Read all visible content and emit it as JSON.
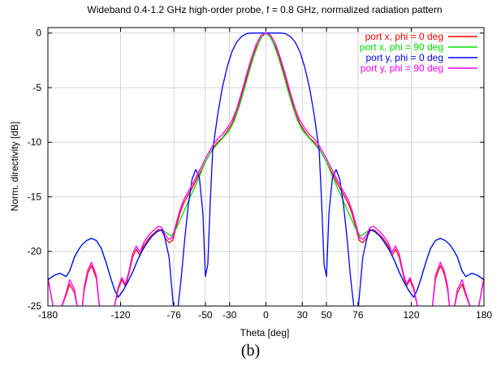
{
  "caption": "(b)",
  "chart_data": {
    "type": "line",
    "title": "Wideband 0.4-1.2 GHz high-order probe, f = 0.8 GHz, normalized radiation pattern",
    "xlabel": "Theta [deg]",
    "ylabel": "Norm. directivity [dB]",
    "xlim": [
      -180,
      180
    ],
    "ylim": [
      -25,
      0.5
    ],
    "xticks": [
      -180,
      -120,
      -76,
      -50,
      -30,
      0,
      30,
      50,
      76,
      120,
      180
    ],
    "yticks": [
      0,
      -5,
      -10,
      -15,
      -20,
      -25
    ],
    "grid": true,
    "legend_position": "top-right",
    "series": [
      {
        "name": "port x, phi =  0 deg",
        "color": "#ff0000",
        "x": [
          -180,
          -175,
          -170,
          -165,
          -162,
          -158,
          -155,
          -152,
          -150,
          -147,
          -144,
          -140,
          -137,
          -134,
          -130,
          -126,
          -122,
          -119,
          -116,
          -113,
          -110,
          -107,
          -104,
          -101,
          -98,
          -95,
          -92,
          -89,
          -86,
          -83,
          -80,
          -77,
          -74,
          -71,
          -68,
          -65,
          -62,
          -59,
          -56,
          -53,
          -50,
          -47,
          -44,
          -40,
          -36,
          -32,
          -28,
          -24,
          -20,
          -16,
          -12,
          -8,
          -4,
          0,
          4,
          8,
          12,
          16,
          20,
          24,
          28,
          32,
          36,
          40,
          44,
          47,
          50,
          53,
          56,
          59,
          62,
          65,
          68,
          71,
          74,
          77,
          80,
          83,
          86,
          89,
          92,
          95,
          98,
          101,
          104,
          107,
          110,
          113,
          116,
          119,
          122,
          126,
          130,
          134,
          137,
          140,
          144,
          147,
          150,
          152,
          155,
          158,
          162,
          165,
          170,
          175,
          180
        ],
        "y": [
          -22.4,
          -25.5,
          -25.5,
          -24.0,
          -23.0,
          -23.8,
          -25.5,
          -25.5,
          -23.5,
          -22.0,
          -21.3,
          -22.5,
          -25.5,
          -25.5,
          -25.5,
          -25.5,
          -23.5,
          -22.6,
          -23.2,
          -22.0,
          -20.5,
          -19.8,
          -20.4,
          -19.5,
          -19.0,
          -18.6,
          -18.3,
          -18.0,
          -18.1,
          -18.8,
          -19.2,
          -19.0,
          -17.7,
          -16.5,
          -15.6,
          -15.0,
          -14.4,
          -13.8,
          -13.1,
          -12.5,
          -11.8,
          -11.2,
          -10.6,
          -10.0,
          -9.6,
          -9.0,
          -8.3,
          -7.2,
          -5.7,
          -4.1,
          -2.6,
          -1.3,
          -0.4,
          0,
          -0.4,
          -1.3,
          -2.6,
          -4.1,
          -5.7,
          -7.2,
          -8.3,
          -9.0,
          -9.6,
          -10.0,
          -10.6,
          -11.2,
          -11.8,
          -12.5,
          -13.1,
          -13.8,
          -14.4,
          -15.0,
          -15.6,
          -16.5,
          -17.7,
          -19.0,
          -19.2,
          -18.8,
          -18.1,
          -18.0,
          -18.3,
          -18.6,
          -19.0,
          -19.5,
          -20.4,
          -19.8,
          -20.5,
          -22.0,
          -23.2,
          -22.6,
          -23.5,
          -25.5,
          -25.5,
          -25.5,
          -25.5,
          -22.5,
          -21.3,
          -22.0,
          -23.5,
          -25.5,
          -25.5,
          -23.8,
          -23.0,
          -24.0,
          -25.5,
          -25.5,
          -22.4
        ]
      },
      {
        "name": "port x, phi = 90 deg",
        "color": "#00e000",
        "x": [
          -180,
          -175,
          -170,
          -165,
          -162,
          -158,
          -155,
          -152,
          -148,
          -144,
          -140,
          -136,
          -132,
          -128,
          -125,
          -122,
          -118,
          -114,
          -110,
          -106,
          -102,
          -98,
          -94,
          -90,
          -86,
          -82,
          -78,
          -74,
          -70,
          -66,
          -62,
          -58,
          -54,
          -50,
          -46,
          -42,
          -38,
          -34,
          -30,
          -26,
          -22,
          -18,
          -14,
          -10,
          -6,
          -3,
          0,
          3,
          6,
          10,
          14,
          18,
          22,
          26,
          30,
          34,
          38,
          42,
          46,
          50,
          54,
          58,
          62,
          66,
          70,
          74,
          78,
          82,
          86,
          90,
          94,
          98,
          102,
          106,
          110,
          114,
          118,
          122,
          125,
          128,
          132,
          136,
          140,
          144,
          148,
          152,
          155,
          158,
          162,
          165,
          170,
          175,
          180
        ],
        "y": [
          -22.6,
          -22.2,
          -22.0,
          -22.3,
          -21.8,
          -20.5,
          -19.9,
          -19.4,
          -19.0,
          -18.8,
          -19.0,
          -19.7,
          -21.0,
          -22.5,
          -23.5,
          -24.2,
          -23.6,
          -22.8,
          -21.9,
          -20.8,
          -19.9,
          -19.2,
          -18.6,
          -18.2,
          -18.0,
          -18.3,
          -18.6,
          -17.9,
          -16.9,
          -15.9,
          -14.9,
          -13.9,
          -12.9,
          -11.8,
          -11.0,
          -10.4,
          -9.9,
          -9.4,
          -8.9,
          -8.0,
          -6.7,
          -5.2,
          -3.6,
          -2.1,
          -0.9,
          -0.25,
          0,
          -0.25,
          -0.9,
          -2.1,
          -3.6,
          -5.2,
          -6.7,
          -8.0,
          -8.9,
          -9.4,
          -9.9,
          -10.4,
          -11.0,
          -11.8,
          -12.9,
          -13.9,
          -14.9,
          -15.9,
          -16.9,
          -17.9,
          -18.6,
          -18.3,
          -18.0,
          -18.2,
          -18.6,
          -19.2,
          -19.9,
          -20.8,
          -21.9,
          -22.8,
          -23.6,
          -24.2,
          -23.5,
          -22.5,
          -21.0,
          -19.7,
          -19.0,
          -18.8,
          -19.0,
          -19.4,
          -19.9,
          -20.5,
          -21.8,
          -22.3,
          -22.0,
          -22.2,
          -22.6
        ]
      },
      {
        "name": "port y, phi =  0 deg",
        "color": "#0000ff",
        "x": [
          -180,
          -175,
          -170,
          -165,
          -162,
          -158,
          -155,
          -152,
          -148,
          -144,
          -140,
          -136,
          -132,
          -128,
          -125,
          -122,
          -118,
          -114,
          -110,
          -106,
          -102,
          -98,
          -94,
          -90,
          -86,
          -84,
          -80,
          -76,
          -73,
          -70,
          -67,
          -64,
          -61,
          -58,
          -55,
          -52,
          -50,
          -48,
          -46,
          -44,
          -40,
          -36,
          -32,
          -28,
          -24,
          -20,
          -16,
          -12,
          -8,
          -4,
          0,
          4,
          8,
          12,
          16,
          20,
          24,
          28,
          32,
          36,
          40,
          44,
          46,
          48,
          50,
          52,
          55,
          58,
          61,
          64,
          67,
          70,
          73,
          76,
          80,
          84,
          86,
          90,
          94,
          98,
          102,
          106,
          110,
          114,
          118,
          122,
          125,
          128,
          132,
          136,
          140,
          144,
          148,
          152,
          155,
          158,
          162,
          165,
          170,
          175,
          180
        ],
        "y": [
          -22.6,
          -22.2,
          -22.0,
          -22.3,
          -21.8,
          -20.5,
          -19.9,
          -19.4,
          -19.0,
          -18.8,
          -19.0,
          -19.7,
          -21.0,
          -22.5,
          -23.5,
          -24.2,
          -23.6,
          -22.8,
          -21.9,
          -20.8,
          -19.9,
          -19.2,
          -18.6,
          -18.2,
          -18.0,
          -18.5,
          -20.5,
          -25.5,
          -25.5,
          -22.5,
          -18.8,
          -15.7,
          -13.4,
          -12.5,
          -13.2,
          -16.5,
          -22.3,
          -21.2,
          -15.5,
          -10.8,
          -7.6,
          -5.0,
          -3.1,
          -1.7,
          -0.8,
          -0.3,
          -0.05,
          0,
          0,
          0,
          0,
          0,
          0,
          0,
          -0.05,
          -0.3,
          -0.8,
          -1.7,
          -3.1,
          -5.0,
          -7.6,
          -10.8,
          -15.5,
          -21.2,
          -22.3,
          -16.5,
          -13.2,
          -12.5,
          -13.4,
          -15.7,
          -18.8,
          -22.5,
          -25.5,
          -25.5,
          -20.5,
          -18.5,
          -18.0,
          -18.2,
          -18.6,
          -19.2,
          -19.9,
          -20.8,
          -21.9,
          -22.8,
          -23.6,
          -24.2,
          -23.5,
          -22.5,
          -21.0,
          -19.7,
          -19.0,
          -18.8,
          -19.0,
          -19.4,
          -19.9,
          -20.5,
          -21.8,
          -22.3,
          -22.0,
          -22.2,
          -22.6
        ]
      },
      {
        "name": "port y, phi = 90 deg",
        "color": "#ff00ff",
        "x": [
          -180,
          -175,
          -170,
          -165,
          -162,
          -158,
          -155,
          -152,
          -150,
          -147,
          -144,
          -140,
          -137,
          -134,
          -130,
          -126,
          -122,
          -119,
          -116,
          -113,
          -110,
          -107,
          -104,
          -101,
          -98,
          -95,
          -92,
          -89,
          -86,
          -83,
          -80,
          -77,
          -74,
          -71,
          -68,
          -65,
          -62,
          -59,
          -56,
          -53,
          -50,
          -47,
          -44,
          -40,
          -36,
          -32,
          -28,
          -24,
          -20,
          -16,
          -12,
          -8,
          -4,
          0,
          4,
          8,
          12,
          16,
          20,
          24,
          28,
          32,
          36,
          40,
          44,
          47,
          50,
          53,
          56,
          59,
          62,
          65,
          68,
          71,
          74,
          77,
          80,
          83,
          86,
          89,
          92,
          95,
          98,
          101,
          104,
          107,
          110,
          113,
          116,
          119,
          122,
          126,
          130,
          134,
          137,
          140,
          144,
          147,
          150,
          152,
          155,
          158,
          162,
          165,
          170,
          175,
          180
        ],
        "y": [
          -22.5,
          -25.5,
          -25.5,
          -23.8,
          -22.6,
          -23.5,
          -25.5,
          -25.5,
          -23.2,
          -21.7,
          -21.0,
          -22.2,
          -25.5,
          -25.5,
          -25.5,
          -25.5,
          -23.3,
          -22.4,
          -23.0,
          -21.8,
          -20.2,
          -19.5,
          -20.1,
          -19.2,
          -18.7,
          -18.3,
          -18.0,
          -17.7,
          -17.8,
          -18.5,
          -18.9,
          -18.7,
          -17.4,
          -16.2,
          -15.3,
          -14.7,
          -14.1,
          -13.5,
          -12.8,
          -12.2,
          -11.5,
          -10.9,
          -10.3,
          -9.7,
          -9.3,
          -8.7,
          -8.0,
          -6.9,
          -5.4,
          -3.8,
          -2.3,
          -1.0,
          -0.2,
          0,
          -0.2,
          -1.0,
          -2.3,
          -3.8,
          -5.4,
          -6.9,
          -8.0,
          -8.7,
          -9.3,
          -9.7,
          -10.3,
          -10.9,
          -11.5,
          -12.2,
          -12.8,
          -13.5,
          -14.1,
          -14.7,
          -15.3,
          -16.2,
          -17.4,
          -18.7,
          -18.9,
          -18.5,
          -17.8,
          -17.7,
          -18.0,
          -18.3,
          -18.7,
          -19.2,
          -20.1,
          -19.5,
          -20.2,
          -21.8,
          -23.0,
          -22.4,
          -23.3,
          -25.5,
          -25.5,
          -25.5,
          -25.5,
          -22.2,
          -21.0,
          -21.7,
          -23.2,
          -25.5,
          -25.5,
          -23.5,
          -22.6,
          -23.8,
          -25.5,
          -25.5,
          -22.5
        ]
      }
    ]
  }
}
